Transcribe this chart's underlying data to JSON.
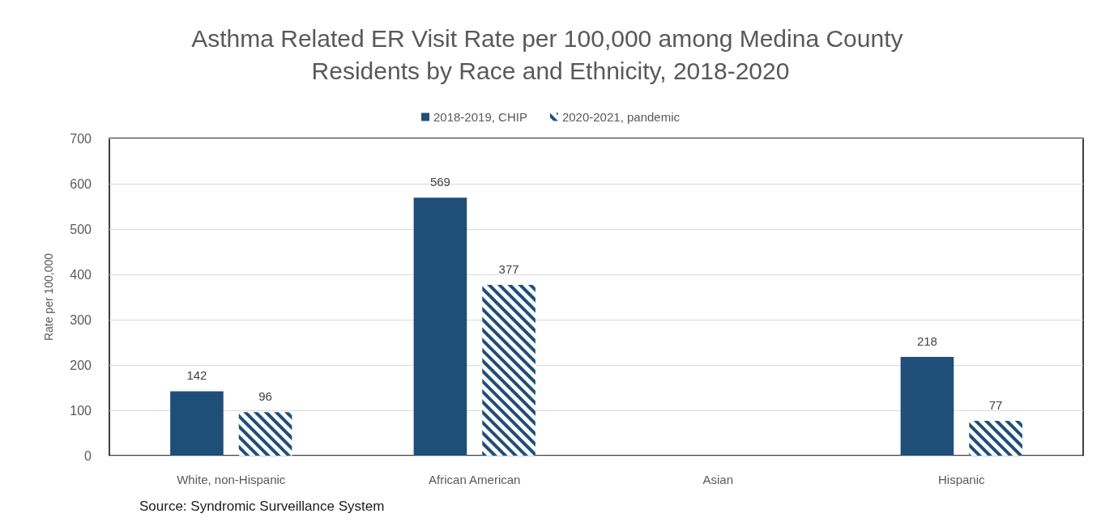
{
  "chart_data": {
    "type": "bar",
    "title": "Asthma Related ER Visit Rate per 100,000 among Medina County Residents by Race and Ethnicity, 2018-2020",
    "ylabel": "Rate per 100,000",
    "categories": [
      "White, non-Hispanic",
      "African American",
      "Asian",
      "Hispanic"
    ],
    "series": [
      {
        "name": "2018-2019, CHIP",
        "color": "#1f4e79",
        "values": [
          142,
          569,
          null,
          218
        ]
      },
      {
        "name": "2020-2021, pandemic",
        "color": "#1f4e79",
        "values": [
          96,
          377,
          null,
          77
        ]
      }
    ],
    "ylim": [
      0,
      700
    ],
    "yticks": [
      0,
      100,
      200,
      300,
      400,
      500,
      600,
      700
    ],
    "grid": "y",
    "legend": "top",
    "data_labels": true,
    "annotations": [
      "Source: Syndromic Surveillance System"
    ]
  }
}
